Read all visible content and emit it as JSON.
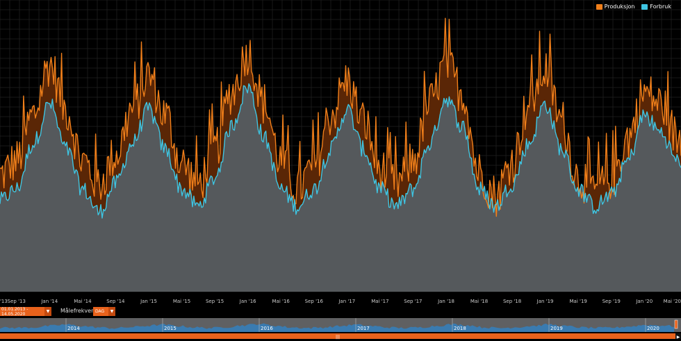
{
  "legend": {
    "production_label": "Produksjon",
    "consumption_label": "Forbruk"
  },
  "colors": {
    "production": "#f07f1a",
    "consumption": "#3ec5e3",
    "production_surplus_fill": "#5a2606",
    "area_fill": "#55595c",
    "grid": "#2f2f2f",
    "accent": "#e8621c",
    "navigator_fill": "#3a7bb0"
  },
  "controls": {
    "date_range_value": "01.01.2013 - 14.05.2020",
    "frequency_label": "Målefrekvens:",
    "frequency_value": "DAG"
  },
  "navigator": {
    "year_labels": [
      "2014",
      "2015",
      "2016",
      "2017",
      "2018",
      "2019",
      "2020"
    ],
    "scrollbar_grip": "|||"
  },
  "chart_data": {
    "type": "line",
    "x_range": [
      "2013-07-01",
      "2020-05-14"
    ],
    "x_tick_labels": [
      "'13",
      "Sep '13",
      "Jan '14",
      "Mai '14",
      "Sep '14",
      "Jan '15",
      "Mai '15",
      "Sep '15",
      "Jan '16",
      "Mai '16",
      "Sep '16",
      "Jan '17",
      "Mai '17",
      "Sep '17",
      "Jan '18",
      "Mai '18",
      "Sep '18",
      "Jan '19",
      "Mai '19",
      "Sep '19",
      "Jan '20",
      "Mai '20"
    ],
    "grid": true,
    "legend_position": "top-right",
    "series": [
      {
        "name": "Produksjon",
        "x": [
          "2013-07",
          "2013-09",
          "2013-11",
          "2014-01",
          "2014-03",
          "2014-05",
          "2014-07",
          "2014-09",
          "2014-11",
          "2015-01",
          "2015-03",
          "2015-05",
          "2015-07",
          "2015-09",
          "2015-11",
          "2016-01",
          "2016-03",
          "2016-05",
          "2016-07",
          "2016-09",
          "2016-11",
          "2017-01",
          "2017-03",
          "2017-05",
          "2017-07",
          "2017-09",
          "2017-11",
          "2018-01",
          "2018-03",
          "2018-05",
          "2018-07",
          "2018-09",
          "2018-11",
          "2019-01",
          "2019-03",
          "2019-05",
          "2019-07",
          "2019-09",
          "2019-11",
          "2020-01",
          "2020-03",
          "2020-05"
        ],
        "values": [
          0.41,
          0.46,
          0.62,
          0.8,
          0.64,
          0.46,
          0.38,
          0.48,
          0.64,
          0.76,
          0.62,
          0.45,
          0.38,
          0.5,
          0.7,
          0.84,
          0.66,
          0.46,
          0.36,
          0.44,
          0.62,
          0.74,
          0.6,
          0.43,
          0.38,
          0.46,
          0.66,
          0.8,
          0.7,
          0.42,
          0.34,
          0.46,
          0.66,
          0.78,
          0.6,
          0.4,
          0.36,
          0.4,
          0.54,
          0.7,
          0.66,
          0.54
        ]
      },
      {
        "name": "Forbruk",
        "x": [
          "2013-07",
          "2013-09",
          "2013-11",
          "2014-01",
          "2014-03",
          "2014-05",
          "2014-07",
          "2014-09",
          "2014-11",
          "2015-01",
          "2015-03",
          "2015-05",
          "2015-07",
          "2015-09",
          "2015-11",
          "2016-01",
          "2016-03",
          "2016-05",
          "2016-07",
          "2016-09",
          "2016-11",
          "2017-01",
          "2017-03",
          "2017-05",
          "2017-07",
          "2017-09",
          "2017-11",
          "2018-01",
          "2018-03",
          "2018-05",
          "2018-07",
          "2018-09",
          "2018-11",
          "2019-01",
          "2019-03",
          "2019-05",
          "2019-07",
          "2019-09",
          "2019-11",
          "2020-01",
          "2020-03",
          "2020-05"
        ],
        "values": [
          0.32,
          0.36,
          0.52,
          0.66,
          0.5,
          0.36,
          0.28,
          0.38,
          0.52,
          0.64,
          0.5,
          0.36,
          0.3,
          0.4,
          0.58,
          0.72,
          0.54,
          0.36,
          0.3,
          0.36,
          0.5,
          0.64,
          0.5,
          0.36,
          0.3,
          0.36,
          0.52,
          0.68,
          0.58,
          0.36,
          0.3,
          0.38,
          0.52,
          0.66,
          0.5,
          0.36,
          0.3,
          0.34,
          0.46,
          0.62,
          0.56,
          0.46
        ]
      }
    ]
  }
}
